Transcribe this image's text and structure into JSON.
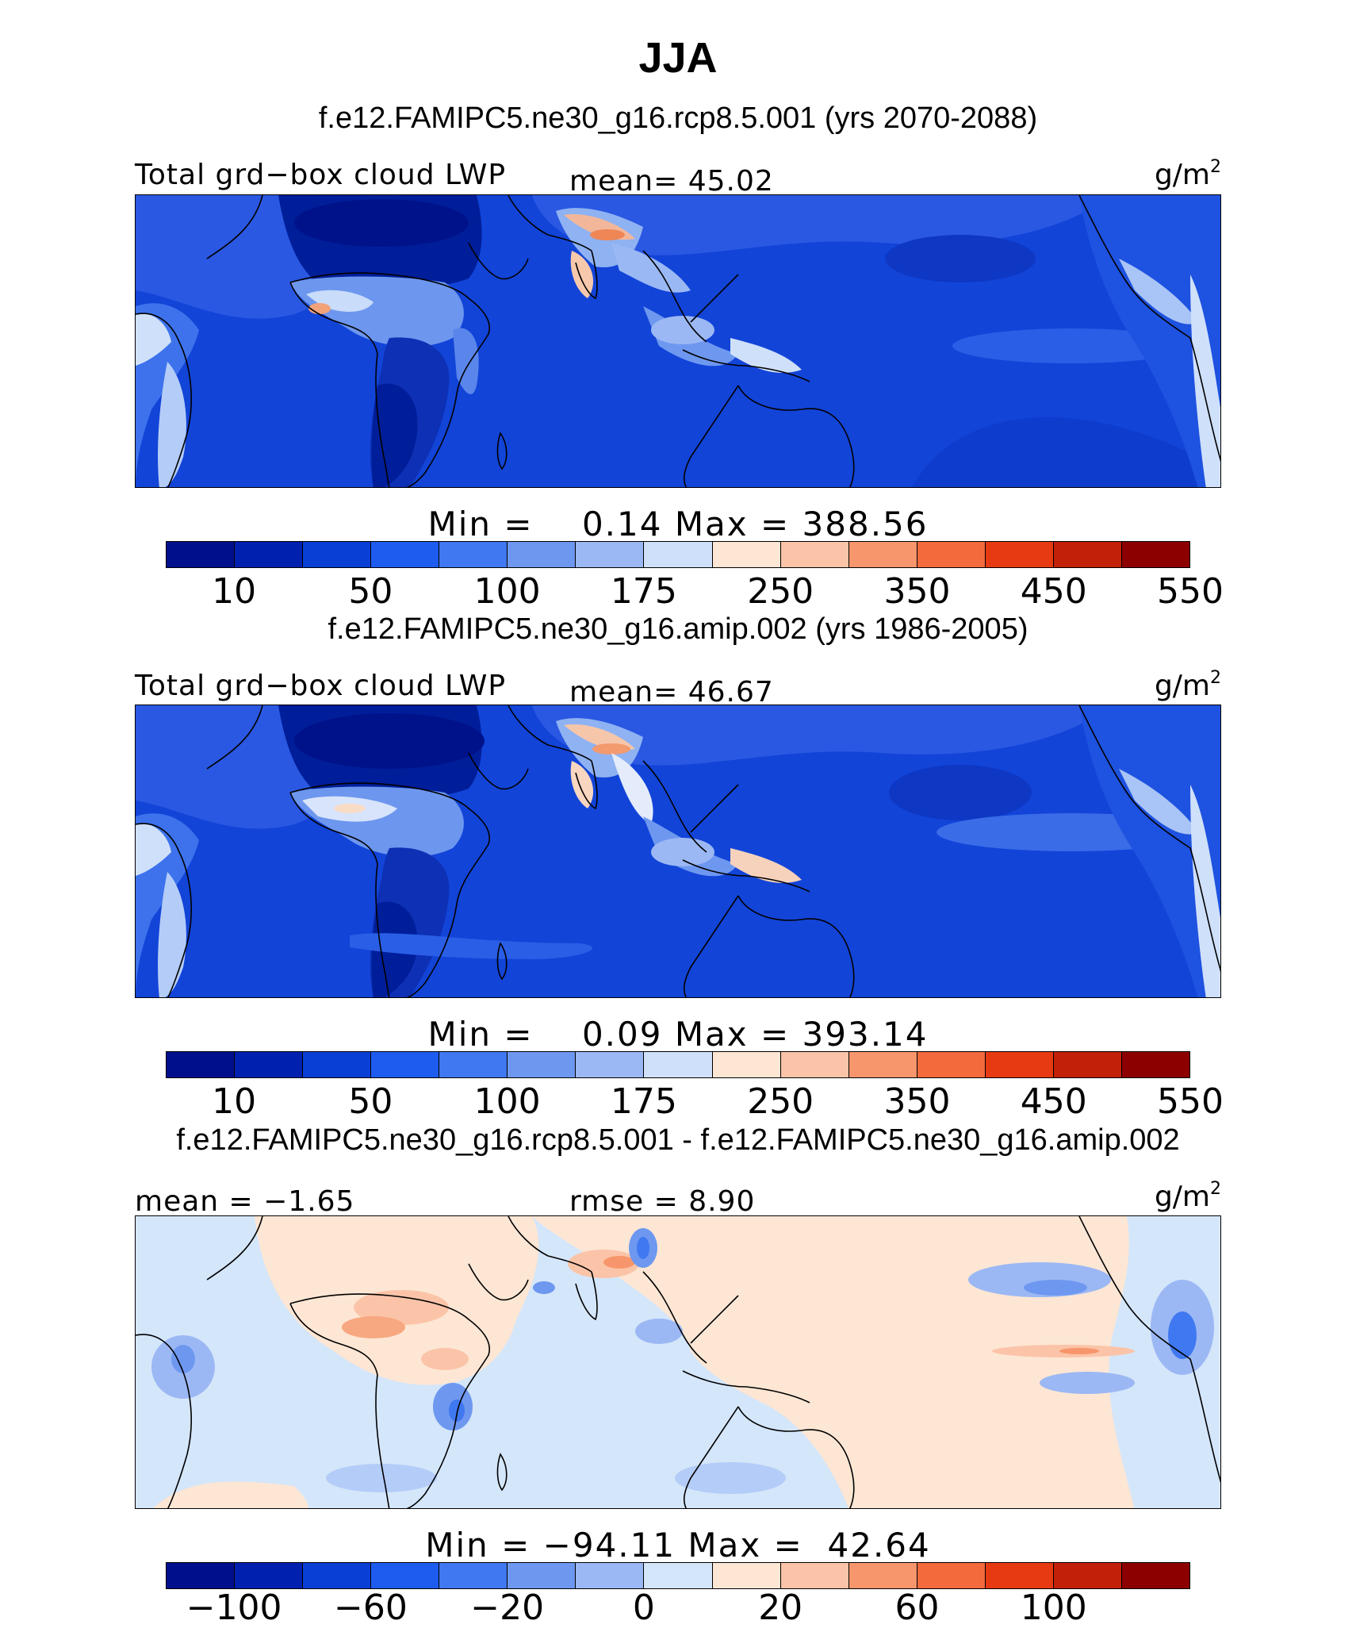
{
  "figure": {
    "title": "JJA",
    "units": "g/m",
    "units_exp": "2"
  },
  "panels": [
    {
      "id": "rcp",
      "title": "f.e12.FAMIPC5.ne30_g16.rcp8.5.001 (yrs 2070-2088)",
      "left_label": "Total grd−box cloud LWP",
      "center_label": "mean=  45.02",
      "minmax": "Min =    0.14 Max = 388.56",
      "palette": "abs",
      "colorbar": {
        "colors": [
          "#00108c",
          "#0020b0",
          "#0a3fd6",
          "#1e5cf0",
          "#3f78f0",
          "#6e98f0",
          "#9cb8f4",
          "#cfe0fa",
          "#fde6d4",
          "#fbc4a8",
          "#f7966c",
          "#f36a3c",
          "#e83a12",
          "#c22008",
          "#8c0000"
        ],
        "ticks": [
          "10",
          "50",
          "100",
          "175",
          "250",
          "350",
          "450",
          "550"
        ]
      }
    },
    {
      "id": "amip",
      "title": "f.e12.FAMIPC5.ne30_g16.amip.002 (yrs 1986-2005)",
      "left_label": "Total grd−box cloud LWP",
      "center_label": "mean=  46.67",
      "minmax": "Min =    0.09 Max = 393.14",
      "palette": "abs",
      "colorbar": {
        "colors": [
          "#00108c",
          "#0020b0",
          "#0a3fd6",
          "#1e5cf0",
          "#3f78f0",
          "#6e98f0",
          "#9cb8f4",
          "#cfe0fa",
          "#fde6d4",
          "#fbc4a8",
          "#f7966c",
          "#f36a3c",
          "#e83a12",
          "#c22008",
          "#8c0000"
        ],
        "ticks": [
          "10",
          "50",
          "100",
          "175",
          "250",
          "350",
          "450",
          "550"
        ]
      }
    },
    {
      "id": "diff",
      "title": "f.e12.FAMIPC5.ne30_g16.rcp8.5.001 - f.e12.FAMIPC5.ne30_g16.amip.002",
      "left_label": "mean =  −1.65",
      "center_label": "rmse =   8.90",
      "minmax": "Min = −94.11 Max =  42.64",
      "palette": "diff",
      "colorbar": {
        "colors": [
          "#00108c",
          "#0020b0",
          "#0a3fd6",
          "#1e5cf0",
          "#3f78f0",
          "#6e98f0",
          "#9cb8f4",
          "#d4e6fa",
          "#fde6d4",
          "#fbc4a8",
          "#f7966c",
          "#f36a3c",
          "#e83a12",
          "#c22008",
          "#8c0000"
        ],
        "ticks": [
          "−100",
          "−60",
          "−20",
          "0",
          "20",
          "60",
          "100"
        ]
      }
    }
  ]
}
